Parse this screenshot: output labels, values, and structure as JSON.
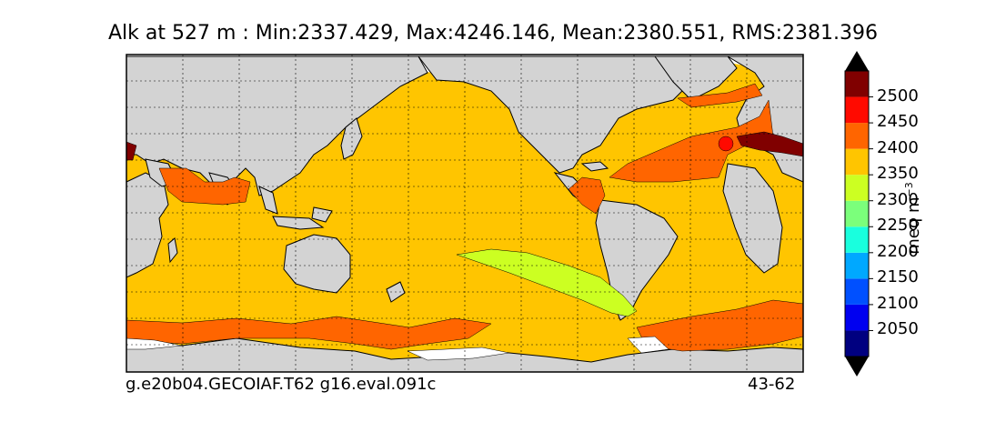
{
  "title": "Alk at 527 m : Min:2337.429, Max:4246.146, Mean:2380.551, RMS:2381.396",
  "footer": {
    "left": "g.e20b04.GECOIAF.T62 g16.eval.091c",
    "right": "43-62"
  },
  "colorbar": {
    "unit_label": "meq m",
    "unit_exponent": "−3",
    "ticks": [
      "2500",
      "2450",
      "2400",
      "2350",
      "2300",
      "2250",
      "2200",
      "2150",
      "2100",
      "2050"
    ],
    "colors": [
      "#000080",
      "#0000f0",
      "#0050ff",
      "#00a8ff",
      "#19ffde",
      "#7bff7b",
      "#ccff22",
      "#ffc500",
      "#ff6500",
      "#ff0a00",
      "#800000"
    ]
  },
  "legend_colors": {
    "land": "#d3d3d3",
    "missing": "#ffffff",
    "ocean_base": "#ffc500"
  }
}
